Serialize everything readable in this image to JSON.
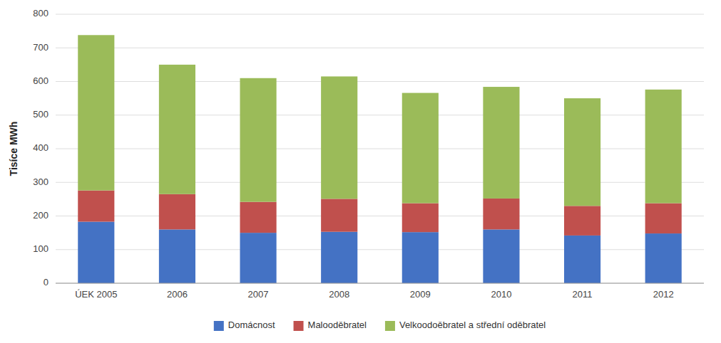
{
  "chart_data": {
    "type": "bar",
    "stacked": true,
    "categories": [
      "ÚEK 2005",
      "2006",
      "2007",
      "2008",
      "2009",
      "2010",
      "2011",
      "2012"
    ],
    "series": [
      {
        "name": "Domácnost",
        "color": "#4472C4",
        "values": [
          183,
          160,
          150,
          153,
          152,
          160,
          142,
          148
        ]
      },
      {
        "name": "Malooděbratel",
        "color": "#C0504D",
        "values": [
          93,
          105,
          92,
          98,
          86,
          92,
          88,
          90
        ]
      },
      {
        "name": "Velkoodoěbratel a střední oděbratel",
        "color": "#9BBB59",
        "values": [
          462,
          385,
          368,
          364,
          328,
          332,
          320,
          338
        ]
      }
    ],
    "ylabel": "Tisíce MWh",
    "ylim": [
      0,
      800
    ],
    "yticks": [
      0,
      100,
      200,
      300,
      400,
      500,
      600,
      700,
      800
    ],
    "grid": true,
    "legend": "bottom"
  }
}
